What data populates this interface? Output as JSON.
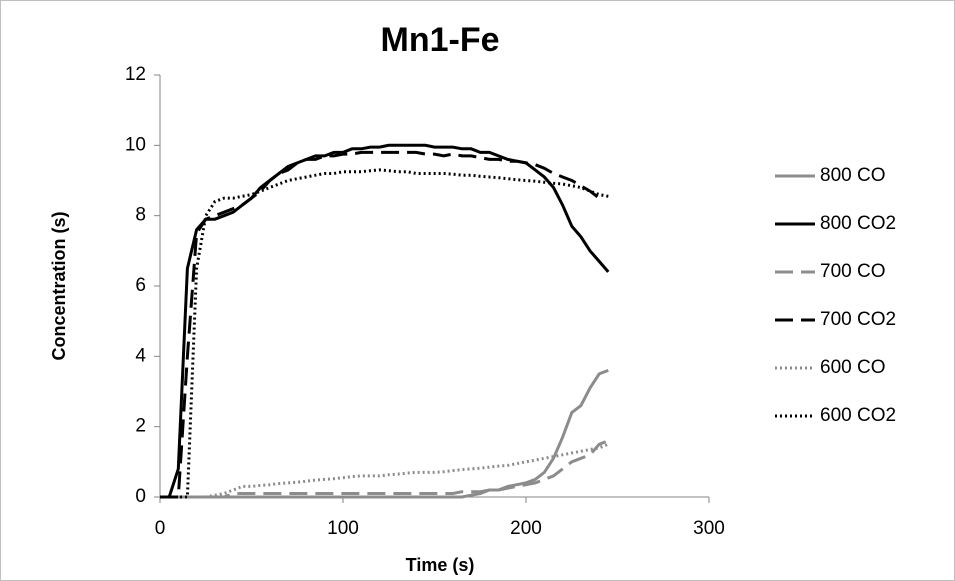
{
  "chart_data": {
    "type": "line",
    "title": "Mn1-Fe",
    "x_label": "Time (s)",
    "y_label": "Concentration (s)",
    "x": [
      0,
      5,
      10,
      15,
      20,
      25,
      30,
      35,
      40,
      45,
      50,
      55,
      60,
      65,
      70,
      75,
      80,
      85,
      90,
      95,
      100,
      105,
      110,
      115,
      120,
      125,
      130,
      135,
      140,
      145,
      150,
      155,
      160,
      165,
      170,
      175,
      180,
      185,
      190,
      195,
      200,
      205,
      210,
      215,
      220,
      225,
      230,
      235,
      240,
      245
    ],
    "xlim": [
      0,
      300
    ],
    "xticks": [
      0,
      100,
      200,
      300
    ],
    "ylim": [
      0,
      12
    ],
    "yticks": [
      0,
      2,
      4,
      6,
      8,
      10,
      12
    ],
    "grid": false,
    "legend": "right",
    "series": [
      {
        "name": "800 CO",
        "color": "#8c8c8c",
        "dash": "solid",
        "values": [
          0,
          0,
          0,
          0,
          0,
          0,
          0,
          0,
          0,
          0,
          0,
          0,
          0,
          0,
          0,
          0,
          0,
          0,
          0,
          0,
          0,
          0,
          0,
          0,
          0,
          0,
          0,
          0,
          0,
          0,
          0,
          0,
          0,
          0,
          0.05,
          0.1,
          0.2,
          0.2,
          0.3,
          0.35,
          0.4,
          0.5,
          0.7,
          1.1,
          1.7,
          2.4,
          2.6,
          3.1,
          3.5,
          3.6
        ]
      },
      {
        "name": "800 CO2",
        "color": "#000000",
        "dash": "solid",
        "values": [
          0,
          0,
          0.8,
          6.5,
          7.6,
          7.9,
          7.9,
          8.0,
          8.1,
          8.3,
          8.5,
          8.8,
          9.0,
          9.2,
          9.4,
          9.5,
          9.6,
          9.7,
          9.7,
          9.8,
          9.8,
          9.9,
          9.9,
          9.95,
          9.95,
          10,
          10,
          10,
          10,
          10,
          9.95,
          9.95,
          9.95,
          9.9,
          9.9,
          9.8,
          9.8,
          9.7,
          9.6,
          9.55,
          9.5,
          9.3,
          9.1,
          8.8,
          8.3,
          7.7,
          7.4,
          7.0,
          6.7,
          6.4
        ]
      },
      {
        "name": "700 CO",
        "color": "#8c8c8c",
        "dash": "dash",
        "values": [
          0,
          0,
          0,
          0,
          0,
          0,
          0,
          0,
          0.1,
          0.1,
          0.1,
          0.1,
          0.1,
          0.1,
          0.1,
          0.1,
          0.1,
          0.1,
          0.1,
          0.1,
          0.1,
          0.1,
          0.1,
          0.1,
          0.1,
          0.1,
          0.1,
          0.1,
          0.1,
          0.1,
          0.1,
          0.1,
          0.1,
          0.15,
          0.15,
          0.15,
          0.2,
          0.2,
          0.25,
          0.3,
          0.35,
          0.4,
          0.5,
          0.6,
          0.8,
          1.0,
          1.1,
          1.2,
          1.5,
          1.6
        ]
      },
      {
        "name": "700 CO2",
        "color": "#000000",
        "dash": "dash",
        "values": [
          0,
          0,
          0,
          4.0,
          7.5,
          7.9,
          8.0,
          8.1,
          8.2,
          8.3,
          8.5,
          8.7,
          9.0,
          9.2,
          9.3,
          9.5,
          9.6,
          9.6,
          9.7,
          9.7,
          9.75,
          9.75,
          9.8,
          9.8,
          9.8,
          9.8,
          9.8,
          9.8,
          9.8,
          9.75,
          9.75,
          9.7,
          9.75,
          9.7,
          9.7,
          9.65,
          9.6,
          9.6,
          9.55,
          9.55,
          9.5,
          9.45,
          9.35,
          9.2,
          9.1,
          9.0,
          8.85,
          8.7,
          8.5,
          null
        ]
      },
      {
        "name": "600 CO",
        "color": "#8c8c8c",
        "dash": "dot",
        "values": [
          0,
          0,
          0,
          0,
          0,
          0,
          0.05,
          0.1,
          0.2,
          0.3,
          0.3,
          0.33,
          0.35,
          0.38,
          0.4,
          0.42,
          0.45,
          0.48,
          0.5,
          0.52,
          0.55,
          0.58,
          0.6,
          0.6,
          0.6,
          0.63,
          0.65,
          0.68,
          0.7,
          0.7,
          0.7,
          0.72,
          0.75,
          0.78,
          0.8,
          0.82,
          0.85,
          0.88,
          0.9,
          0.95,
          1.0,
          1.05,
          1.1,
          1.15,
          1.2,
          1.25,
          1.3,
          1.35,
          1.4,
          1.5
        ]
      },
      {
        "name": "600 CO2",
        "color": "#000000",
        "dash": "dot",
        "values": [
          0,
          0,
          0,
          0,
          6.5,
          8.0,
          8.4,
          8.5,
          8.5,
          8.55,
          8.6,
          8.7,
          8.8,
          8.9,
          9.0,
          9.05,
          9.1,
          9.15,
          9.2,
          9.2,
          9.25,
          9.25,
          9.25,
          9.28,
          9.3,
          9.28,
          9.25,
          9.25,
          9.2,
          9.2,
          9.2,
          9.2,
          9.18,
          9.15,
          9.15,
          9.12,
          9.1,
          9.08,
          9.05,
          9.02,
          9.0,
          8.98,
          8.95,
          8.92,
          8.9,
          8.85,
          8.8,
          8.7,
          8.6,
          8.55
        ]
      }
    ]
  }
}
